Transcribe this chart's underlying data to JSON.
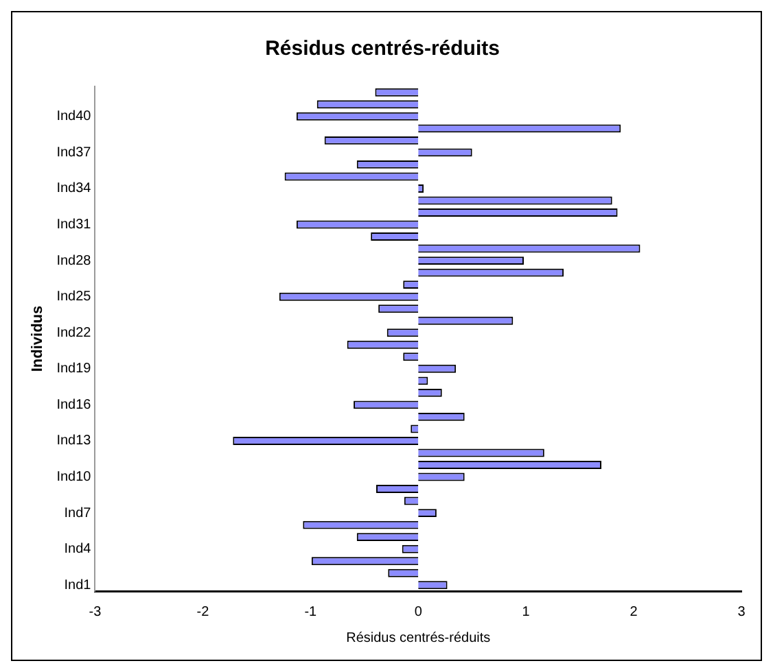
{
  "chart_data": {
    "type": "bar",
    "orientation": "horizontal",
    "title": "Résidus centrés-réduits",
    "xlabel": "Résidus centrés-réduits",
    "ylabel": "Individus",
    "categories": [
      null,
      null,
      "Ind40",
      null,
      null,
      "Ind37",
      null,
      null,
      "Ind34",
      null,
      null,
      "Ind31",
      null,
      null,
      "Ind28",
      null,
      null,
      "Ind25",
      null,
      null,
      "Ind22",
      null,
      null,
      "Ind19",
      null,
      null,
      "Ind16",
      null,
      null,
      "Ind13",
      null,
      null,
      "Ind10",
      null,
      null,
      "Ind7",
      null,
      null,
      "Ind4",
      null,
      null,
      "Ind1"
    ],
    "values": [
      -0.4,
      -0.94,
      -1.13,
      1.88,
      -0.87,
      0.5,
      -0.57,
      -1.24,
      0.05,
      1.8,
      1.85,
      -1.13,
      -0.44,
      2.06,
      0.98,
      1.35,
      -0.14,
      -1.29,
      -0.37,
      0.88,
      -0.29,
      -0.66,
      -0.14,
      0.35,
      0.09,
      0.22,
      -0.6,
      0.43,
      -0.07,
      -1.72,
      1.17,
      1.7,
      0.43,
      -0.39,
      -0.13,
      0.17,
      -1.07,
      -0.57,
      -0.15,
      -0.99,
      -0.28,
      0.27
    ],
    "color": "#8c8cff",
    "xlim": [
      -3,
      3
    ],
    "xticks": [
      -3,
      -2,
      -1,
      0,
      1,
      2,
      3
    ],
    "grid": false,
    "legend": false
  }
}
